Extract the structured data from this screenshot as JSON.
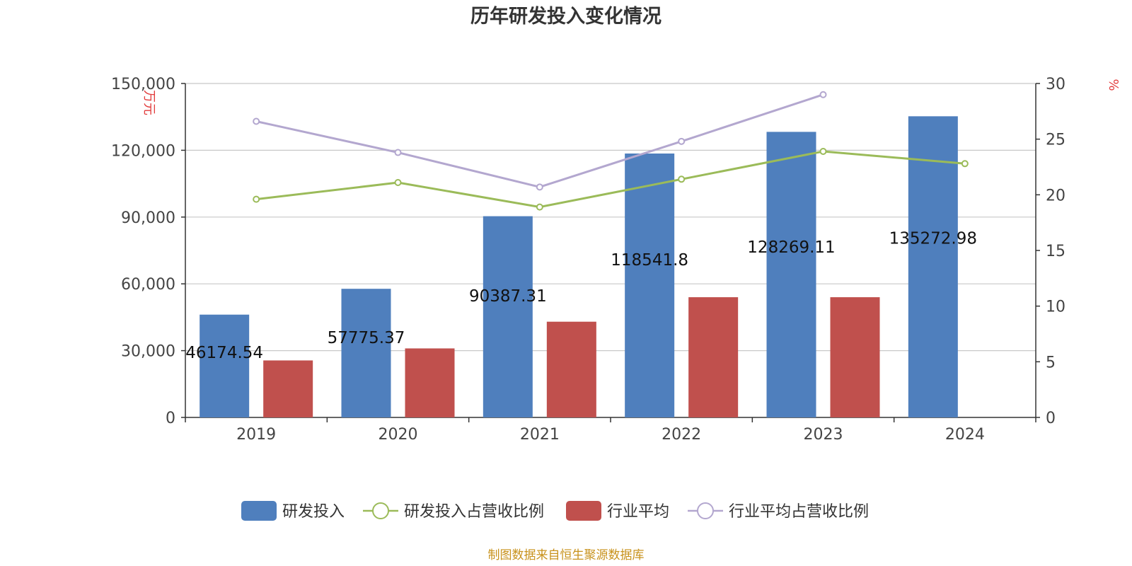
{
  "chart_data": {
    "type": "bar",
    "title": "历年研发投入变化情况",
    "categories": [
      "2019",
      "2020",
      "2021",
      "2022",
      "2023",
      "2024"
    ],
    "y_left": {
      "unit": "万元",
      "ticks": [
        "0",
        "30,000",
        "60,000",
        "90,000",
        "120,000",
        "150,000"
      ],
      "ylim": [
        0,
        150000
      ]
    },
    "y_right": {
      "unit": "%",
      "ticks": [
        "0",
        "5",
        "10",
        "15",
        "20",
        "25",
        "30"
      ],
      "ylim": [
        0,
        30
      ]
    },
    "series": [
      {
        "name": "研发投入",
        "type": "bar",
        "axis": "left",
        "color": "#4f7fbd",
        "values": [
          46174.54,
          57775.37,
          90387.31,
          118541.8,
          128269.11,
          135272.98
        ],
        "labels": [
          "46174.54",
          "57775.37",
          "90387.31",
          "118541.8",
          "128269.11",
          "135272.98"
        ]
      },
      {
        "name": "研发投入占营收比例",
        "type": "line",
        "axis": "right",
        "color": "#9bbb59",
        "values": [
          19.6,
          21.1,
          18.9,
          21.4,
          23.9,
          22.8
        ]
      },
      {
        "name": "行业平均",
        "type": "bar",
        "axis": "left",
        "color": "#c0504d",
        "values": [
          25600,
          31000,
          43000,
          54000,
          54000,
          null
        ]
      },
      {
        "name": "行业平均占营收比例",
        "type": "line",
        "axis": "right",
        "color": "#b3a7cf",
        "values": [
          26.6,
          23.8,
          20.7,
          24.8,
          29.0,
          null
        ]
      }
    ],
    "grid": true,
    "legend": "bottom"
  },
  "source": "制图数据来自恒生聚源数据库"
}
